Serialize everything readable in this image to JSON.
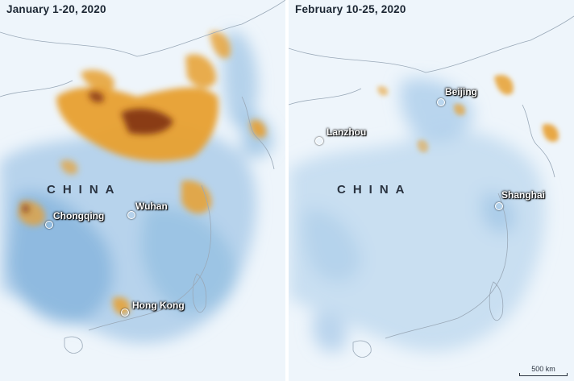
{
  "left_panel": {
    "title": "January 1-20, 2020",
    "country_label": "CHINA",
    "cities": [
      {
        "key": "chongqing",
        "name": "Chongqing"
      },
      {
        "key": "wuhan",
        "name": "Wuhan"
      },
      {
        "key": "hong_kong",
        "name": "Hong Kong"
      }
    ]
  },
  "right_panel": {
    "title": "February 10-25, 2020",
    "country_label": "CHINA",
    "cities": [
      {
        "key": "beijing",
        "name": "Beijing"
      },
      {
        "key": "lanzhou",
        "name": "Lanzhou"
      },
      {
        "key": "shanghai",
        "name": "Shanghai"
      }
    ]
  },
  "scale_bar": {
    "label": "500 km"
  },
  "colors": {
    "background": "#eef5fb",
    "low": "#5b9bd5",
    "medium": "#e8a030",
    "high": "#7a2a0e",
    "boundary": "#9aa9b8"
  }
}
